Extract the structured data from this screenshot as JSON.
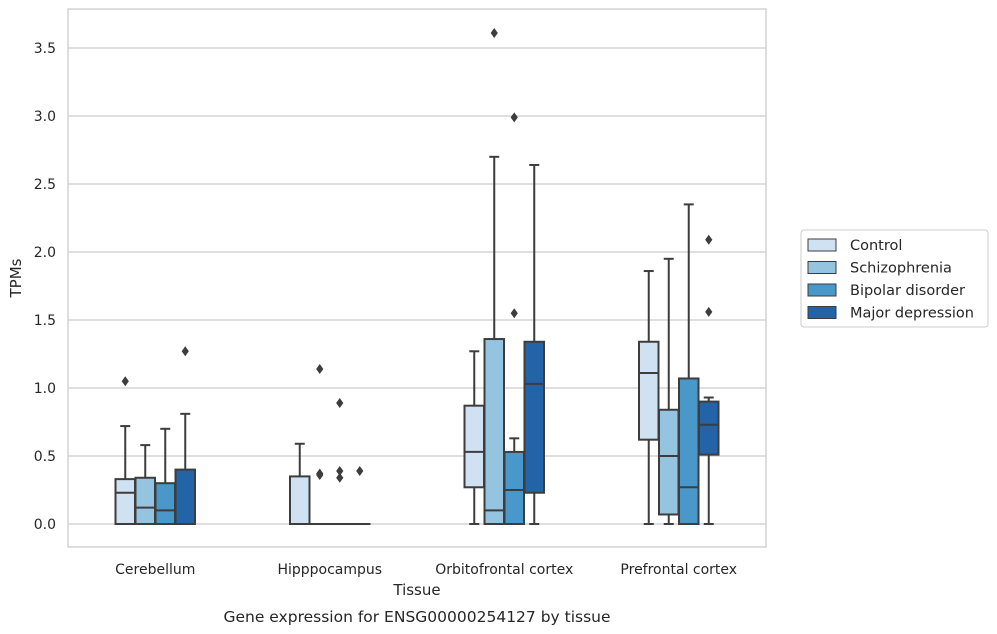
{
  "caption": "Gene expression for ENSG00000254127 by tissue",
  "chart_data": {
    "type": "box",
    "title": "",
    "xlabel": "Tissue",
    "ylabel": "TPMs",
    "ylim": [
      -0.17,
      3.78
    ],
    "yticks": [
      "0.0",
      "0.5",
      "1.0",
      "1.5",
      "2.0",
      "2.5",
      "3.0",
      "3.5"
    ],
    "grid": true,
    "legend_position": "right",
    "categories": [
      "Cerebellum",
      "Hipppocampus",
      "Orbitofrontal cortex",
      "Prefrontal cortex"
    ],
    "series": [
      {
        "name": "Control",
        "color": "#d0e1f2",
        "boxes": [
          {
            "whislo": 0,
            "q1": 0,
            "med": 0.23,
            "q3": 0.33,
            "whishi": 0.72,
            "fliers": [
              1.05
            ]
          },
          {
            "whislo": 0,
            "q1": 0,
            "med": 0,
            "q3": 0.35,
            "whishi": 0.59,
            "fliers": []
          },
          {
            "whislo": 0,
            "q1": 0.27,
            "med": 0.53,
            "q3": 0.87,
            "whishi": 1.27,
            "fliers": []
          },
          {
            "whislo": 0,
            "q1": 0.62,
            "med": 1.11,
            "q3": 1.34,
            "whishi": 1.86,
            "fliers": []
          }
        ]
      },
      {
        "name": "Schizophrenia",
        "color": "#94c4df",
        "boxes": [
          {
            "whislo": 0,
            "q1": 0,
            "med": 0.12,
            "q3": 0.34,
            "whishi": 0.58,
            "fliers": []
          },
          {
            "whislo": 0,
            "q1": 0,
            "med": 0,
            "q3": 0,
            "whishi": 0,
            "fliers": [
              1.14,
              0.37,
              0.36
            ]
          },
          {
            "whislo": 0,
            "q1": 0,
            "med": 0.1,
            "q3": 1.36,
            "whishi": 2.7,
            "fliers": [
              3.61
            ]
          },
          {
            "whislo": 0,
            "q1": 0.07,
            "med": 0.5,
            "q3": 0.84,
            "whishi": 1.95,
            "fliers": []
          }
        ]
      },
      {
        "name": "Bipolar disorder",
        "color": "#4a98c9",
        "boxes": [
          {
            "whislo": 0,
            "q1": 0,
            "med": 0.1,
            "q3": 0.3,
            "whishi": 0.7,
            "fliers": []
          },
          {
            "whislo": 0,
            "q1": 0,
            "med": 0,
            "q3": 0,
            "whishi": 0,
            "fliers": [
              0.89,
              0.39,
              0.34
            ]
          },
          {
            "whislo": 0,
            "q1": 0,
            "med": 0.25,
            "q3": 0.53,
            "whishi": 0.63,
            "fliers": [
              2.99,
              1.55
            ]
          },
          {
            "whislo": 0,
            "q1": 0,
            "med": 0.27,
            "q3": 1.07,
            "whishi": 2.35,
            "fliers": []
          }
        ]
      },
      {
        "name": "Major depression",
        "color": "#2363a8",
        "boxes": [
          {
            "whislo": 0,
            "q1": 0,
            "med": 0,
            "q3": 0.4,
            "whishi": 0.81,
            "fliers": [
              1.27
            ]
          },
          {
            "whislo": 0,
            "q1": 0,
            "med": 0,
            "q3": 0,
            "whishi": 0,
            "fliers": [
              0.39
            ]
          },
          {
            "whislo": 0,
            "q1": 0.23,
            "med": 1.03,
            "q3": 1.34,
            "whishi": 2.64,
            "fliers": []
          },
          {
            "whislo": 0,
            "q1": 0.51,
            "med": 0.73,
            "q3": 0.9,
            "whishi": 0.93,
            "fliers": [
              2.09,
              1.56
            ]
          }
        ]
      }
    ]
  }
}
